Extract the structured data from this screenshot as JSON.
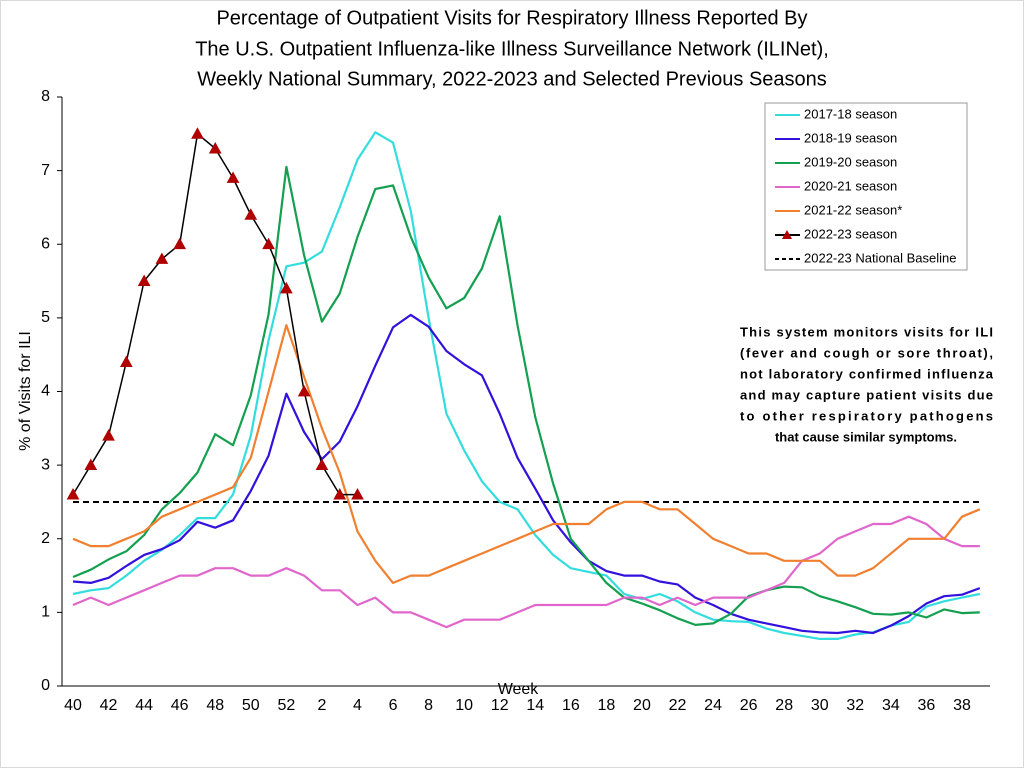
{
  "chart_data": {
    "type": "line",
    "title": [
      "Percentage of Outpatient Visits for Respiratory Illness Reported By",
      "The U.S. Outpatient Influenza-like Illness Surveillance Network (ILINet),",
      "Weekly National Summary, 2022-2023 and Selected Previous Seasons"
    ],
    "x_label": "Week",
    "y_label": "% of Visits for ILI",
    "categories": [
      "40",
      null,
      "42",
      null,
      "44",
      null,
      "46",
      null,
      "48",
      null,
      "50",
      null,
      "52",
      null,
      "2",
      null,
      "4",
      null,
      "6",
      null,
      "8",
      null,
      "10",
      null,
      "12",
      null,
      "14",
      null,
      "16",
      null,
      "18",
      null,
      "20",
      null,
      "22",
      null,
      "24",
      null,
      "26",
      null,
      "28",
      null,
      "30",
      null,
      "32",
      null,
      "34",
      null,
      "36",
      null,
      "38",
      null
    ],
    "ylim": [
      0,
      8
    ],
    "yticks": [
      0,
      1,
      2,
      3,
      4,
      5,
      6,
      7,
      8
    ],
    "series": [
      {
        "name": "2017-18 season",
        "color": "#33dddd",
        "values": [
          1.25,
          1.3,
          1.33,
          1.5,
          1.7,
          1.85,
          2.05,
          2.28,
          2.28,
          2.6,
          3.4,
          4.7,
          5.7,
          5.75,
          5.9,
          6.5,
          7.15,
          7.52,
          7.38,
          6.45,
          5.0,
          3.7,
          3.2,
          2.78,
          2.5,
          2.4,
          2.05,
          1.78,
          1.6,
          1.55,
          1.5,
          1.25,
          1.18,
          1.25,
          1.15,
          1.0,
          0.9,
          0.88,
          0.87,
          0.78,
          0.72,
          0.68,
          0.64,
          0.64,
          0.7,
          0.73,
          0.82,
          0.87,
          1.08,
          1.15,
          1.2,
          1.25
        ]
      },
      {
        "name": "2018-19 season",
        "color": "#3311dd",
        "values": [
          1.42,
          1.4,
          1.47,
          1.63,
          1.78,
          1.86,
          1.98,
          2.23,
          2.15,
          2.25,
          2.65,
          3.13,
          3.97,
          3.45,
          3.08,
          3.32,
          3.8,
          4.35,
          4.87,
          5.04,
          4.88,
          4.55,
          4.37,
          4.22,
          3.7,
          3.1,
          2.68,
          2.25,
          1.95,
          1.7,
          1.56,
          1.5,
          1.5,
          1.42,
          1.38,
          1.2,
          1.1,
          0.98,
          0.9,
          0.85,
          0.8,
          0.75,
          0.73,
          0.72,
          0.75,
          0.72,
          0.82,
          0.95,
          1.12,
          1.22,
          1.24,
          1.33
        ]
      },
      {
        "name": "2019-20 season",
        "color": "#14a050",
        "values": [
          1.48,
          1.58,
          1.72,
          1.83,
          2.05,
          2.4,
          2.62,
          2.9,
          3.42,
          3.27,
          3.95,
          5.05,
          7.05,
          5.85,
          4.95,
          5.33,
          6.1,
          6.75,
          6.8,
          6.1,
          5.55,
          5.13,
          5.27,
          5.67,
          6.38,
          4.9,
          3.65,
          2.75,
          2.0,
          1.7,
          1.4,
          1.2,
          1.12,
          1.03,
          0.92,
          0.83,
          0.85,
          0.98,
          1.22,
          1.3,
          1.35,
          1.34,
          1.22,
          1.15,
          1.07,
          0.98,
          0.97,
          1.0,
          0.93,
          1.04,
          0.99,
          1.0
        ]
      },
      {
        "name": "2020-21 season",
        "color": "#e066cc",
        "values": [
          1.1,
          1.2,
          1.1,
          1.2,
          1.3,
          1.4,
          1.5,
          1.5,
          1.6,
          1.6,
          1.5,
          1.5,
          1.6,
          1.5,
          1.3,
          1.3,
          1.1,
          1.2,
          1.0,
          1.0,
          0.9,
          0.8,
          0.9,
          0.9,
          0.9,
          1.0,
          1.1,
          1.1,
          1.1,
          1.1,
          1.1,
          1.2,
          1.2,
          1.1,
          1.2,
          1.1,
          1.2,
          1.2,
          1.2,
          1.3,
          1.4,
          1.7,
          1.8,
          2.0,
          2.1,
          2.2,
          2.2,
          2.3,
          2.2,
          2.0,
          1.9,
          1.9
        ]
      },
      {
        "name": "2021-22 season*",
        "color": "#f08030",
        "values": [
          2.0,
          1.9,
          1.9,
          2.0,
          2.1,
          2.3,
          2.4,
          2.5,
          2.6,
          2.7,
          3.1,
          4.0,
          4.9,
          4.2,
          3.5,
          2.9,
          2.1,
          1.7,
          1.4,
          1.5,
          1.5,
          1.6,
          1.7,
          1.8,
          1.9,
          2.0,
          2.1,
          2.2,
          2.2,
          2.2,
          2.4,
          2.5,
          2.5,
          2.4,
          2.4,
          2.2,
          2.0,
          1.9,
          1.8,
          1.8,
          1.7,
          1.7,
          1.7,
          1.5,
          1.5,
          1.6,
          1.8,
          2.0,
          2.0,
          2.0,
          2.3,
          2.4
        ]
      },
      {
        "name": "2022-23 season",
        "color": "#000000",
        "marker": "triangle",
        "marker_color": "#b00000",
        "values": [
          2.6,
          3.0,
          3.4,
          4.4,
          5.5,
          5.8,
          6.0,
          7.5,
          7.3,
          6.9,
          6.4,
          6.0,
          5.4,
          4.0,
          3.0,
          2.6,
          2.6,
          null,
          null,
          null,
          null,
          null,
          null,
          null,
          null,
          null,
          null,
          null,
          null,
          null,
          null,
          null,
          null,
          null,
          null,
          null,
          null,
          null,
          null,
          null,
          null,
          null,
          null,
          null,
          null,
          null,
          null,
          null,
          null,
          null,
          null,
          null
        ]
      }
    ],
    "baseline": {
      "name": "2022-23 National Baseline",
      "value": 2.5,
      "color": "#000000",
      "dashed": true
    },
    "annotation": [
      "This system monitors visits for ILI",
      "(fever and cough or sore throat),",
      "not laboratory confirmed influenza",
      "and may capture patient visits due",
      "to other respiratory pathogens",
      "that cause similar symptoms."
    ]
  }
}
